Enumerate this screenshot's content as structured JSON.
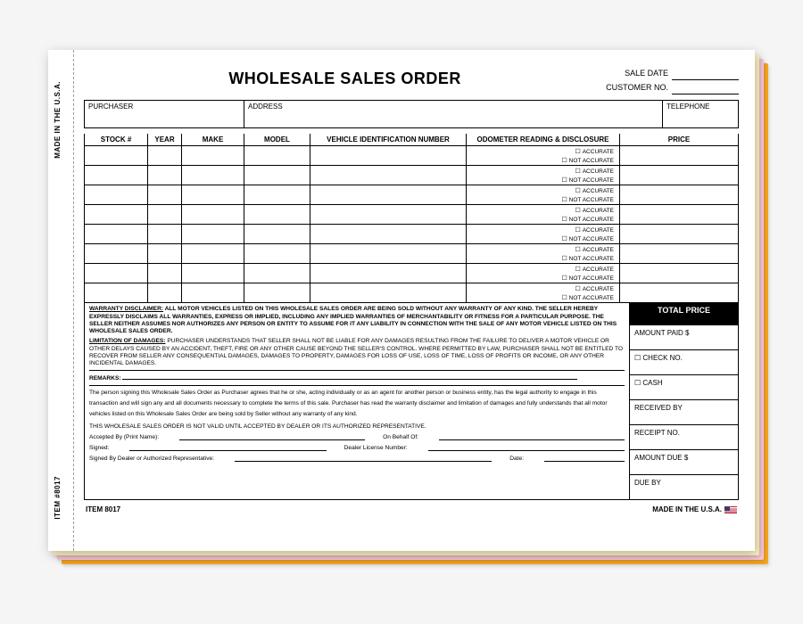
{
  "sheets": {
    "colors": [
      "#f5a623",
      "#f7c7d8",
      "#fdf3c2",
      "#ffffff"
    ]
  },
  "side": {
    "made_in": "MADE IN THE U.S.A.",
    "item_no": "ITEM #8017"
  },
  "header": {
    "title": "WHOLESALE SALES ORDER",
    "sale_date_label": "SALE DATE",
    "customer_no_label": "CUSTOMER NO."
  },
  "purchaser_row": {
    "purchaser": "PURCHASER",
    "address": "ADDRESS",
    "telephone": "TELEPHONE"
  },
  "columns": {
    "stock": "STOCK #",
    "year": "YEAR",
    "make": "MAKE",
    "model": "MODEL",
    "vin": "VEHICLE IDENTIFICATION NUMBER",
    "odo": "ODOMETER READING & DISCLOSURE",
    "price": "PRICE"
  },
  "odo_options": {
    "accurate": "ACCURATE",
    "not_accurate": "NOT ACCURATE"
  },
  "data_row_count": 8,
  "disclaimers": {
    "warranty_head": "WARRANTY DISCLAIMER:",
    "warranty_body": "ALL MOTOR VEHICLES LISTED ON THIS WHOLESALE SALES ORDER ARE BEING SOLD WITHOUT ANY WARRANTY OF ANY KIND. THE SELLER HEREBY EXPRESSLY DISCLAIMS ALL WARRANTIES, EXPRESS OR IMPLIED, INCLUDING ANY IMPLIED WARRANTIES OF MERCHANTABILITY OR FITNESS FOR A PARTICULAR PURPOSE. THE SELLER NEITHER ASSUMES NOR AUTHORIZES ANY PERSON OR ENTITY TO ASSUME FOR IT ANY LIABILITY IN CONNECTION WITH THE SALE OF ANY MOTOR VEHICLE LISTED ON THIS WHOLESALE SALES ORDER.",
    "limitation_head": "LIMITATION OF DAMAGES:",
    "limitation_body": "PURCHASER UNDERSTANDS THAT SELLER SHALL NOT BE LIABLE FOR ANY DAMAGES RESULTING FROM THE FAILURE TO DELIVER A MOTOR VEHICLE OR OTHER DELAYS CAUSED BY AN ACCIDENT, THEFT, FIRE OR ANY OTHER CAUSE BEYOND THE SELLER'S CONTROL. WHERE PERMITTED BY LAW, PURCHASER SHALL NOT BE ENTITLED TO RECOVER FROM SELLER ANY CONSEQUENTIAL DAMAGES, DAMAGES TO PROPERTY, DAMAGES FOR LOSS OF USE, LOSS OF TIME, LOSS OF PROFITS OR INCOME, OR ANY OTHER INCIDENTAL DAMAGES.",
    "remarks_label": "REMARKS:",
    "agreement": "The person signing this Wholesale Sales Order as Purchaser agrees that he or she, acting individually or as an agent for another person or business entity, has the legal authority to engage in this transaction and will sign any and all documents necessary to complete the terms of this sale. Purchaser has read the warranty disclaimer and limitation of damages and fully understands that all motor vehicles listed on this Wholesale Sales Order are being sold by Seller without any warranty of any kind.",
    "not_valid": "THIS WHOLESALE SALES ORDER IS NOT VALID UNTIL ACCEPTED BY DEALER OR ITS AUTHORIZED REPRESENTATIVE.",
    "accepted_by": "Accepted By (Print Name):",
    "on_behalf": "On Behalf Of:",
    "signed": "Signed:",
    "dealer_license": "Dealer License Number:",
    "signed_dealer": "Signed By Dealer or Authorized Representative:",
    "date": "Date:"
  },
  "totals": {
    "total_price": "TOTAL PRICE",
    "amount_paid": "AMOUNT PAID $",
    "check_no": "CHECK NO.",
    "cash": "CASH",
    "received_by": "RECEIVED BY",
    "receipt_no": "RECEIPT NO.",
    "amount_due": "AMOUNT DUE  $",
    "due_by": "DUE BY"
  },
  "footer": {
    "item": "ITEM 8017",
    "made": "MADE IN THE U.S.A."
  }
}
